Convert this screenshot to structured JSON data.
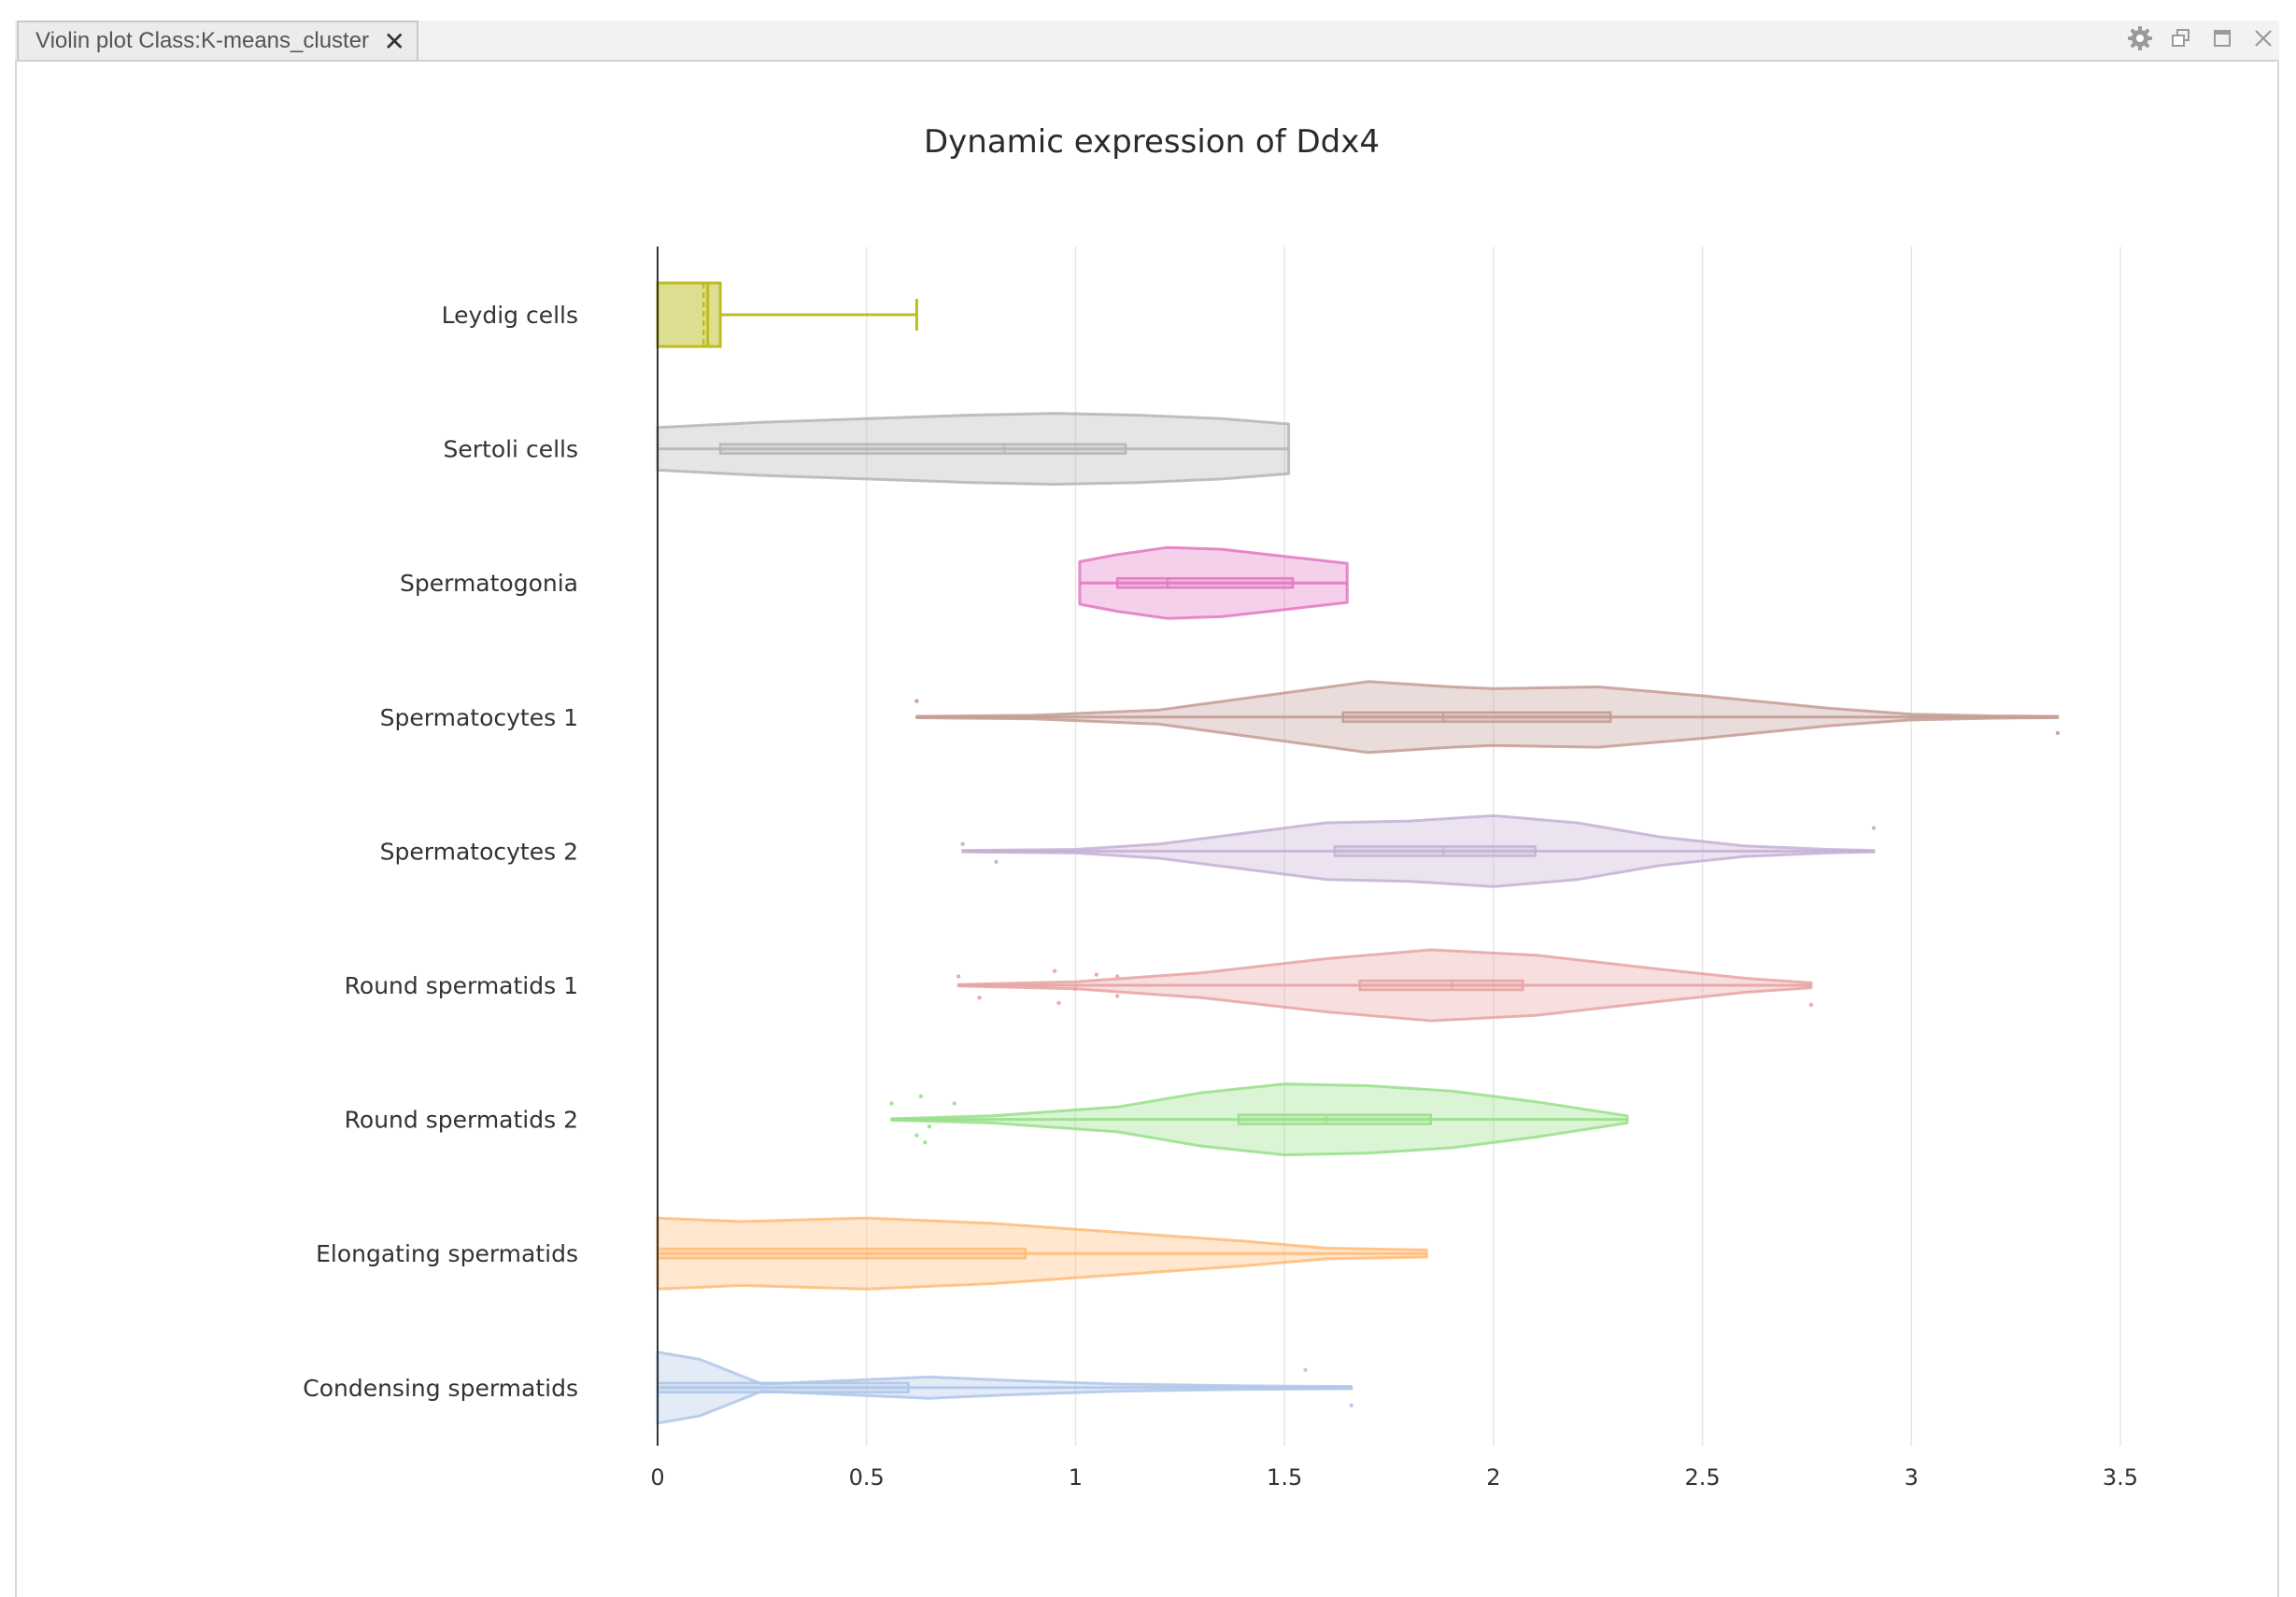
{
  "tab": {
    "label": "Violin plot Class:K-means_cluster",
    "close_glyph": "✕"
  },
  "window_controls": {
    "icons": [
      "gear-icon",
      "restore-icon",
      "maximize-icon",
      "close-icon"
    ]
  },
  "chart_data": {
    "type": "violin",
    "orientation": "horizontal",
    "title": "Dynamic expression of Ddx4",
    "xlabel": "",
    "ylabel": "",
    "xlim": [
      0,
      3.6
    ],
    "xticks": [
      0,
      0.5,
      1,
      1.5,
      2,
      2.5,
      3,
      3.5
    ],
    "xtick_labels": [
      "0",
      "0.5",
      "1",
      "1.5",
      "2",
      "2.5",
      "3",
      "3.5"
    ],
    "grid": true,
    "series": [
      {
        "name": "Leydig cells",
        "color": "#bcbd22",
        "kind": "box",
        "min": 0,
        "q1": 0,
        "median": 0.12,
        "mean": 0.11,
        "q3": 0.15,
        "max": 0.62,
        "density": [],
        "outliers": []
      },
      {
        "name": "Sertoli cells",
        "color": "#b5b5b5",
        "min": 0,
        "q1": 0.15,
        "median": 0.83,
        "q3": 1.12,
        "max": 1.51,
        "density": [
          [
            0,
            0.6
          ],
          [
            0.25,
            0.75
          ],
          [
            0.5,
            0.85
          ],
          [
            0.75,
            0.95
          ],
          [
            0.95,
            1.0
          ],
          [
            1.15,
            0.95
          ],
          [
            1.35,
            0.85
          ],
          [
            1.51,
            0.7
          ]
        ],
        "outliers": []
      },
      {
        "name": "Spermatogonia",
        "color": "#e377c2",
        "min": 1.01,
        "q1": 1.1,
        "median": 1.22,
        "q3": 1.52,
        "max": 1.65,
        "density": [
          [
            1.01,
            0.6
          ],
          [
            1.1,
            0.8
          ],
          [
            1.22,
            1.0
          ],
          [
            1.35,
            0.95
          ],
          [
            1.5,
            0.75
          ],
          [
            1.65,
            0.55
          ]
        ],
        "outliers": []
      },
      {
        "name": "Spermatocytes 1",
        "color": "#c49c94",
        "min": 0.62,
        "q1": 1.64,
        "median": 1.88,
        "q3": 2.28,
        "max": 3.35,
        "density": [
          [
            0.62,
            0.02
          ],
          [
            0.9,
            0.05
          ],
          [
            1.2,
            0.2
          ],
          [
            1.45,
            0.6
          ],
          [
            1.7,
            1.0
          ],
          [
            1.9,
            0.85
          ],
          [
            2.0,
            0.8
          ],
          [
            2.25,
            0.85
          ],
          [
            2.5,
            0.6
          ],
          [
            2.8,
            0.25
          ],
          [
            3.0,
            0.08
          ],
          [
            3.2,
            0.03
          ],
          [
            3.35,
            0.02
          ]
        ],
        "outliers": [
          [
            0.62,
            0.45
          ],
          [
            3.35,
            -0.45
          ]
        ]
      },
      {
        "name": "Spermatocytes 2",
        "color": "#c5b0d5",
        "min": 0.73,
        "q1": 1.62,
        "median": 1.88,
        "q3": 2.1,
        "max": 2.91,
        "density": [
          [
            0.73,
            0.02
          ],
          [
            1.0,
            0.05
          ],
          [
            1.2,
            0.2
          ],
          [
            1.4,
            0.5
          ],
          [
            1.6,
            0.8
          ],
          [
            1.8,
            0.85
          ],
          [
            2.0,
            1.0
          ],
          [
            2.2,
            0.8
          ],
          [
            2.4,
            0.4
          ],
          [
            2.6,
            0.15
          ],
          [
            2.8,
            0.05
          ],
          [
            2.91,
            0.02
          ]
        ],
        "outliers": [
          [
            0.73,
            0.2
          ],
          [
            0.81,
            -0.3
          ],
          [
            2.91,
            0.65
          ]
        ]
      },
      {
        "name": "Round spermatids 1",
        "color": "#e8a3a3",
        "min": 0.72,
        "q1": 1.68,
        "median": 1.9,
        "q3": 2.07,
        "max": 2.76,
        "density": [
          [
            0.72,
            0.02
          ],
          [
            1.0,
            0.1
          ],
          [
            1.3,
            0.35
          ],
          [
            1.6,
            0.75
          ],
          [
            1.85,
            1.0
          ],
          [
            2.1,
            0.85
          ],
          [
            2.4,
            0.45
          ],
          [
            2.6,
            0.2
          ],
          [
            2.76,
            0.07
          ]
        ],
        "outliers": [
          [
            0.72,
            0.25
          ],
          [
            0.77,
            -0.35
          ],
          [
            0.95,
            0.4
          ],
          [
            0.96,
            -0.5
          ],
          [
            1.0,
            -0.1
          ],
          [
            1.05,
            0.3
          ],
          [
            1.1,
            0.25
          ],
          [
            1.1,
            -0.3
          ],
          [
            2.76,
            -0.55
          ]
        ]
      },
      {
        "name": "Round spermatids 2",
        "color": "#98df8a",
        "min": 0.56,
        "q1": 1.39,
        "median": 1.6,
        "q3": 1.85,
        "max": 2.32,
        "density": [
          [
            0.56,
            0.02
          ],
          [
            0.8,
            0.1
          ],
          [
            1.1,
            0.35
          ],
          [
            1.3,
            0.75
          ],
          [
            1.5,
            1.0
          ],
          [
            1.7,
            0.95
          ],
          [
            1.9,
            0.8
          ],
          [
            2.1,
            0.5
          ],
          [
            2.32,
            0.1
          ]
        ],
        "outliers": [
          [
            0.56,
            0.45
          ],
          [
            0.63,
            0.65
          ],
          [
            0.71,
            0.45
          ],
          [
            0.62,
            -0.45
          ],
          [
            0.65,
            -0.2
          ],
          [
            0.64,
            -0.65
          ]
        ]
      },
      {
        "name": "Elongating spermatids",
        "color": "#ffbb78",
        "min": 0,
        "q1": 0,
        "median": 0.88,
        "q3": 0.88,
        "max": 1.84,
        "density": [
          [
            0,
            1.0
          ],
          [
            0.2,
            0.9
          ],
          [
            0.5,
            1.0
          ],
          [
            0.8,
            0.85
          ],
          [
            1.1,
            0.6
          ],
          [
            1.4,
            0.35
          ],
          [
            1.6,
            0.15
          ],
          [
            1.84,
            0.1
          ]
        ],
        "outliers": []
      },
      {
        "name": "Condensing spermatids",
        "color": "#aec7e8",
        "min": 0,
        "q1": 0,
        "median": 0.6,
        "q3": 0.6,
        "max": 1.66,
        "density": [
          [
            0,
            1.0
          ],
          [
            0.1,
            0.8
          ],
          [
            0.25,
            0.1
          ],
          [
            0.45,
            0.2
          ],
          [
            0.65,
            0.3
          ],
          [
            0.85,
            0.2
          ],
          [
            1.1,
            0.1
          ],
          [
            1.4,
            0.05
          ],
          [
            1.66,
            0.03
          ]
        ],
        "outliers": [
          [
            1.55,
            0.5
          ],
          [
            1.66,
            -0.5
          ]
        ]
      }
    ]
  }
}
